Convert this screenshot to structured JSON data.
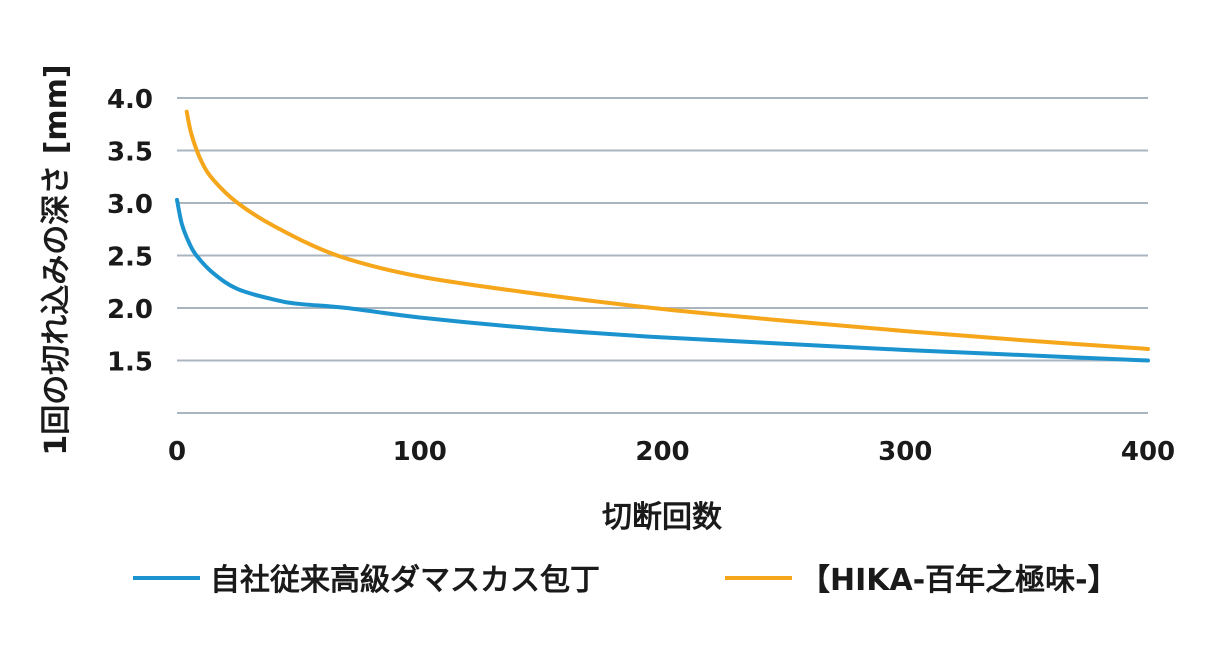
{
  "chart_data": {
    "type": "line",
    "title": "",
    "xlabel": "切断回数",
    "ylabel": "1回の切れ込みの深さ [mm]",
    "xlim": [
      0,
      400
    ],
    "ylim": [
      1.0,
      4.0
    ],
    "xticks": [
      0,
      100,
      200,
      300,
      400
    ],
    "xtick_labels": [
      "0",
      "100",
      "200",
      "300",
      "400"
    ],
    "yticks": [
      1.0,
      1.5,
      2.0,
      2.5,
      3.0,
      3.5,
      4.0
    ],
    "ytick_labels": [
      "",
      "1.5",
      "2.0",
      "2.5",
      "3.0",
      "3.5",
      "4.0"
    ],
    "grid": "horizontal",
    "legend_position": "bottom",
    "series": [
      {
        "name": "自社従来高級ダマスカス包丁",
        "color": "#1a93cf",
        "x": [
          0,
          2,
          5,
          8,
          15,
          25,
          40,
          50,
          70,
          100,
          150,
          200,
          250,
          300,
          350,
          400
        ],
        "y": [
          3.03,
          2.8,
          2.62,
          2.5,
          2.33,
          2.18,
          2.08,
          2.04,
          2.0,
          1.91,
          1.8,
          1.72,
          1.66,
          1.6,
          1.55,
          1.5
        ]
      },
      {
        "name": "【HIKA-百年之極味-】",
        "color": "#f5a61b",
        "x": [
          4,
          6,
          10,
          15,
          25,
          40,
          66,
          100,
          150,
          200,
          250,
          300,
          350,
          400
        ],
        "y": [
          3.87,
          3.65,
          3.4,
          3.22,
          3.0,
          2.78,
          2.5,
          2.3,
          2.13,
          1.99,
          1.88,
          1.78,
          1.69,
          1.61
        ]
      }
    ]
  }
}
